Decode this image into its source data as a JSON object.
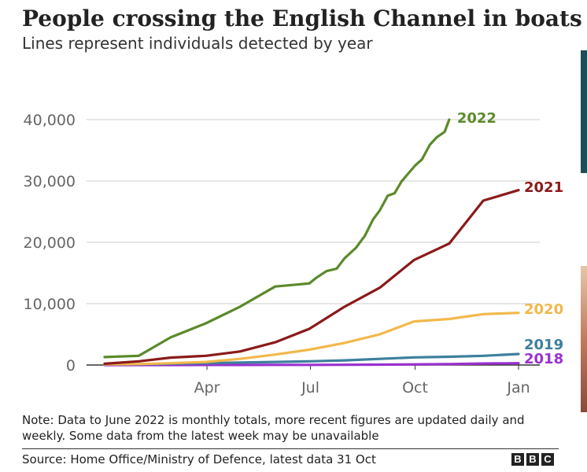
{
  "title": "People crossing the English Channel in boats",
  "subtitle": "Lines represent individuals detected by year",
  "note": "Note: Data to June 2022 is monthly totals, more recent figures are updated daily and weekly. Some data from the latest week may be unavailable",
  "source": "Source: Home Office/Ministry of Defence, latest data 31 Oct",
  "logo_letters": [
    "B",
    "B",
    "C"
  ],
  "chart_data": {
    "type": "line",
    "x_unit": "day of year",
    "x_range": [
      1,
      365
    ],
    "ylim": [
      0,
      40000
    ],
    "grid": true,
    "legend": "labels at line ends",
    "xticks": [
      {
        "label": "Apr",
        "x": 91
      },
      {
        "label": "Jul",
        "x": 182
      },
      {
        "label": "Oct",
        "x": 274
      },
      {
        "label": "Jan",
        "x": 365
      }
    ],
    "yticks": [
      {
        "label": "0",
        "y": 0
      },
      {
        "label": "10,000",
        "y": 10000
      },
      {
        "label": "20,000",
        "y": 20000
      },
      {
        "label": "30,000",
        "y": 30000
      },
      {
        "label": "40,000",
        "y": 40000
      }
    ],
    "series": [
      {
        "name": "2018",
        "color": "#9b30d0",
        "x": [
          1,
          31,
          59,
          90,
          120,
          151,
          181,
          212,
          243,
          273,
          304,
          334,
          365
        ],
        "y": [
          0,
          0,
          5,
          10,
          15,
          20,
          30,
          40,
          60,
          100,
          150,
          250,
          300
        ]
      },
      {
        "name": "2019",
        "color": "#3d7f9d",
        "x": [
          1,
          31,
          59,
          90,
          120,
          151,
          181,
          212,
          243,
          273,
          304,
          334,
          365
        ],
        "y": [
          100,
          130,
          200,
          300,
          400,
          500,
          600,
          750,
          1000,
          1250,
          1350,
          1500,
          1800
        ]
      },
      {
        "name": "2020",
        "color": "#f2b84b",
        "x": [
          1,
          31,
          59,
          90,
          120,
          151,
          181,
          212,
          243,
          273,
          304,
          334,
          365
        ],
        "y": [
          100,
          150,
          300,
          500,
          1000,
          1700,
          2500,
          3600,
          5000,
          7100,
          7500,
          8300,
          8500
        ]
      },
      {
        "name": "2021",
        "color": "#8b1a1a",
        "x": [
          1,
          31,
          59,
          90,
          120,
          151,
          181,
          212,
          243,
          273,
          304,
          334,
          365
        ],
        "y": [
          200,
          600,
          1200,
          1500,
          2200,
          3700,
          5900,
          9500,
          12600,
          17100,
          19800,
          26800,
          28500
        ]
      },
      {
        "name": "2022",
        "color": "#5b8a2b",
        "x": [
          1,
          31,
          59,
          90,
          120,
          151,
          181,
          187,
          196,
          205,
          212,
          222,
          230,
          237,
          243,
          250,
          256,
          262,
          268,
          274,
          280,
          287,
          293,
          300,
          304
        ],
        "y": [
          1300,
          1500,
          4500,
          6800,
          9500,
          12800,
          13300,
          14200,
          15300,
          15700,
          17400,
          19100,
          21100,
          23700,
          25200,
          27600,
          28000,
          29900,
          31200,
          32500,
          33500,
          35900,
          37100,
          38000,
          40000
        ]
      }
    ]
  }
}
